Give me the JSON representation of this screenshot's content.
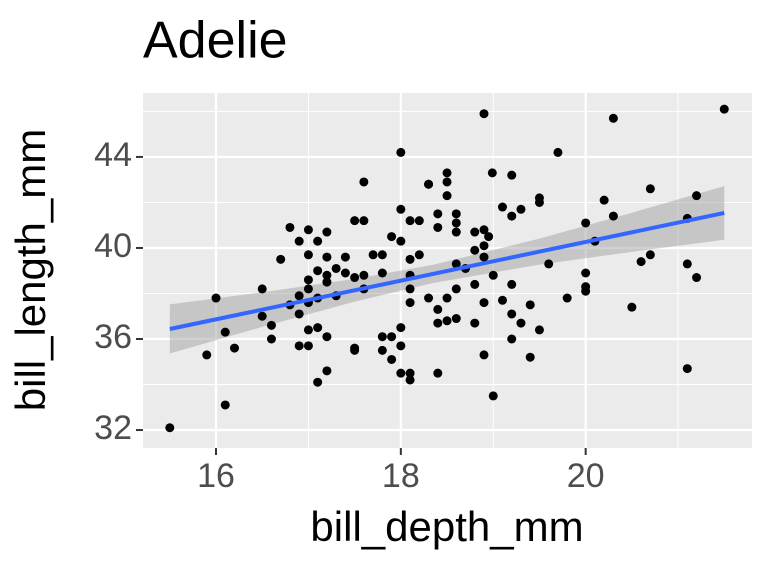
{
  "chart_data": {
    "type": "scatter",
    "title": "Adelie",
    "x_label": "bill_depth_mm",
    "y_label": "bill_length_mm",
    "xlim": [
      15.21,
      21.8
    ],
    "ylim": [
      31.21,
      46.81
    ],
    "xticks": [
      16,
      18,
      20
    ],
    "yticks": [
      32,
      36,
      40,
      44
    ],
    "xminor": [
      15,
      17,
      19,
      21
    ],
    "yminor": [
      34,
      38,
      42,
      46
    ],
    "grid": true,
    "point_color": "#000000",
    "background": "#EBEBEB",
    "x": [
      18.9,
      18.99,
      19.2,
      18.5,
      18.5,
      18.5,
      18.3,
      18.6,
      18.6,
      18.4,
      18.4,
      18.6,
      19.1,
      19.2,
      19.3,
      19.5,
      19.5,
      19.7,
      20.3,
      20.2,
      20.3,
      20.0,
      20.1,
      20.7,
      20.6,
      20.7,
      21.1,
      21.2,
      21.1,
      21.2,
      21.1,
      21.5,
      20.0,
      20.0,
      20.0,
      19.8,
      19.6,
      20.5,
      18.9,
      18.8,
      18.95,
      18.9,
      18.8,
      18.9,
      19.0,
      18.7,
      18.6,
      18.8,
      18.9,
      19.1,
      19.2,
      19.3,
      19.5,
      19.4,
      19.2,
      18.9,
      19.0,
      19.2,
      19.4,
      18.6,
      18.5,
      18.4,
      18.4,
      18.5,
      18.6,
      18.3,
      18.1,
      18.1,
      18.1,
      18.0,
      17.9,
      17.8,
      18.0,
      17.9,
      18.1,
      18.1,
      18.4,
      18.8,
      18.0,
      17.6,
      18.3,
      18.1,
      18.2,
      18.0,
      17.9,
      18.0,
      17.8,
      17.7,
      18.1,
      18.2,
      17.6,
      17.5,
      17.4,
      17.2,
      17.0,
      16.8,
      16.9,
      17.1,
      17.0,
      17.2,
      16.7,
      17.3,
      17.1,
      17.2,
      17.4,
      17.5,
      17.6,
      17.8,
      17.0,
      17.0,
      17.2,
      16.9,
      17.1,
      17.3,
      17.6,
      16.5,
      16.8,
      17.0,
      16.9,
      16.5,
      16.6,
      17.1,
      17.0,
      17.2,
      16.6,
      16.9,
      17.0,
      17.5,
      17.5,
      17.2,
      17.1,
      17.8,
      16.0,
      16.1,
      16.2,
      15.9,
      16.1,
      15.5,
      18.0
    ],
    "values": [
      45.9,
      43.3,
      43.2,
      43.3,
      42.9,
      42.3,
      42.8,
      41.5,
      41.1,
      41.5,
      40.9,
      40.7,
      41.8,
      41.4,
      41.7,
      42.2,
      42.0,
      44.2,
      45.7,
      42.1,
      41.4,
      41.1,
      40.3,
      42.6,
      39.4,
      39.7,
      41.3,
      42.3,
      39.3,
      38.7,
      34.7,
      46.1,
      38.9,
      38.3,
      38.1,
      37.8,
      39.3,
      37.4,
      40.8,
      40.7,
      40.5,
      40.1,
      39.9,
      39.6,
      38.8,
      39.1,
      39.3,
      38.4,
      37.6,
      37.7,
      37.1,
      36.7,
      36.4,
      35.2,
      36.0,
      35.3,
      33.5,
      38.4,
      37.5,
      38.2,
      37.8,
      37.3,
      36.7,
      36.8,
      36.9,
      37.8,
      38.8,
      38.2,
      37.6,
      36.5,
      36.1,
      36.1,
      35.7,
      35.1,
      34.5,
      34.2,
      34.5,
      36.7,
      44.2,
      42.9,
      42.8,
      41.2,
      41.2,
      41.7,
      40.5,
      40.3,
      39.7,
      39.7,
      39.5,
      39.7,
      41.2,
      41.2,
      39.6,
      40.7,
      40.8,
      40.9,
      40.3,
      40.3,
      39.7,
      39.6,
      39.5,
      39.1,
      39.0,
      38.8,
      38.9,
      38.7,
      38.8,
      38.9,
      38.6,
      38.2,
      38.5,
      37.9,
      37.8,
      37.9,
      38.2,
      38.2,
      37.5,
      37.6,
      37.1,
      37.0,
      36.6,
      36.5,
      36.4,
      36.1,
      36.0,
      35.7,
      35.7,
      35.6,
      35.5,
      34.6,
      34.1,
      35.5,
      37.8,
      36.3,
      35.6,
      35.3,
      33.1,
      32.1,
      34.5
    ],
    "fit": {
      "color": "#3366FF",
      "x": [
        15.5,
        21.5
      ],
      "values": [
        36.44,
        41.54
      ]
    },
    "band": {
      "color": "#999999",
      "x": [
        15.5,
        16.5,
        17.5,
        18.35,
        19.5,
        20.5,
        21.5
      ],
      "lower": [
        35.36,
        36.53,
        37.64,
        38.46,
        39.27,
        39.83,
        40.36
      ],
      "upper": [
        37.52,
        38.05,
        38.64,
        39.26,
        40.41,
        41.55,
        42.72
      ]
    }
  }
}
